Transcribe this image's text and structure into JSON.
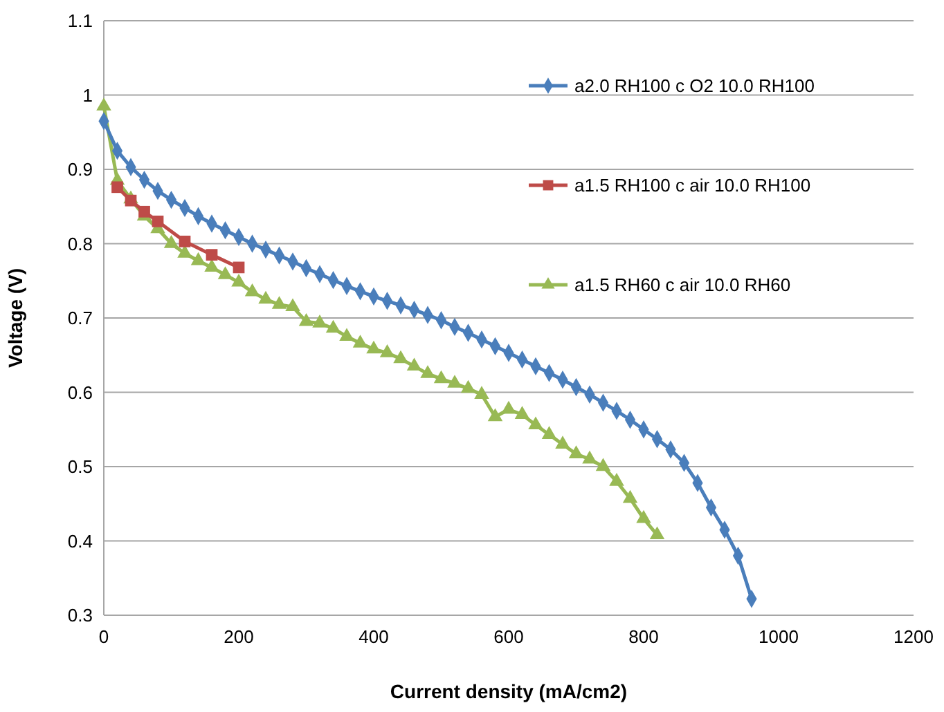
{
  "chart_data": {
    "type": "line",
    "xlabel": "Current density (mA/cm2)",
    "ylabel": "Voltage (V)",
    "xlim": [
      0,
      1200
    ],
    "xticks": [
      0,
      200,
      400,
      600,
      800,
      1000,
      1200
    ],
    "ylim": [
      0.3,
      1.1
    ],
    "yticks": [
      {
        "value": 0.3,
        "label": "0.3"
      },
      {
        "value": 0.4,
        "label": "0.4"
      },
      {
        "value": 0.5,
        "label": "0.5"
      },
      {
        "value": 0.6,
        "label": "0.6"
      },
      {
        "value": 0.7,
        "label": "0.7"
      },
      {
        "value": 0.8,
        "label": "0.8"
      },
      {
        "value": 0.9,
        "label": "0.9"
      },
      {
        "value": 1,
        "label": "1"
      },
      {
        "value": 1.1,
        "label": "1.1"
      }
    ],
    "grid": "y",
    "legend": "top right",
    "series": [
      {
        "name": "a2.0 RH100  c O2 10.0 RH100",
        "color": "#4a7ebb",
        "marker": "diamond",
        "x": [
          0,
          20,
          40,
          60,
          80,
          100,
          120,
          140,
          160,
          180,
          200,
          220,
          240,
          260,
          280,
          300,
          320,
          340,
          360,
          380,
          400,
          420,
          440,
          460,
          480,
          500,
          520,
          540,
          560,
          580,
          600,
          620,
          640,
          660,
          680,
          700,
          720,
          740,
          760,
          780,
          800,
          820,
          840,
          860,
          880,
          900,
          920,
          940,
          960
        ],
        "values": [
          0.965,
          0.925,
          0.903,
          0.886,
          0.871,
          0.859,
          0.848,
          0.837,
          0.827,
          0.818,
          0.809,
          0.8,
          0.792,
          0.784,
          0.776,
          0.767,
          0.759,
          0.751,
          0.743,
          0.736,
          0.729,
          0.723,
          0.717,
          0.711,
          0.704,
          0.697,
          0.688,
          0.68,
          0.671,
          0.662,
          0.653,
          0.644,
          0.635,
          0.626,
          0.617,
          0.607,
          0.597,
          0.586,
          0.575,
          0.563,
          0.55,
          0.537,
          0.523,
          0.505,
          0.478,
          0.445,
          0.415,
          0.38,
          0.322
        ]
      },
      {
        "name": "a1.5 RH100 c air 10.0 RH100",
        "color": "#be4b48",
        "marker": "square",
        "x": [
          20,
          40,
          60,
          80,
          120,
          160,
          200
        ],
        "values": [
          0.876,
          0.858,
          0.843,
          0.83,
          0.803,
          0.785,
          0.768
        ]
      },
      {
        "name": "a1.5 RH60 c air 10.0 RH60",
        "color": "#98b954",
        "marker": "triangle",
        "x": [
          0,
          20,
          40,
          60,
          80,
          100,
          120,
          140,
          160,
          180,
          200,
          220,
          240,
          260,
          280,
          300,
          320,
          340,
          360,
          380,
          400,
          420,
          440,
          460,
          480,
          500,
          520,
          540,
          560,
          580,
          600,
          620,
          640,
          660,
          680,
          700,
          720,
          740,
          760,
          780,
          800,
          820
        ],
        "values": [
          0.985,
          0.885,
          0.86,
          0.837,
          0.82,
          0.8,
          0.787,
          0.777,
          0.768,
          0.758,
          0.748,
          0.735,
          0.725,
          0.718,
          0.715,
          0.695,
          0.693,
          0.686,
          0.675,
          0.666,
          0.658,
          0.653,
          0.645,
          0.635,
          0.625,
          0.618,
          0.612,
          0.605,
          0.597,
          0.567,
          0.577,
          0.57,
          0.556,
          0.543,
          0.53,
          0.517,
          0.51,
          0.5,
          0.48,
          0.457,
          0.43,
          0.408
        ]
      }
    ]
  }
}
